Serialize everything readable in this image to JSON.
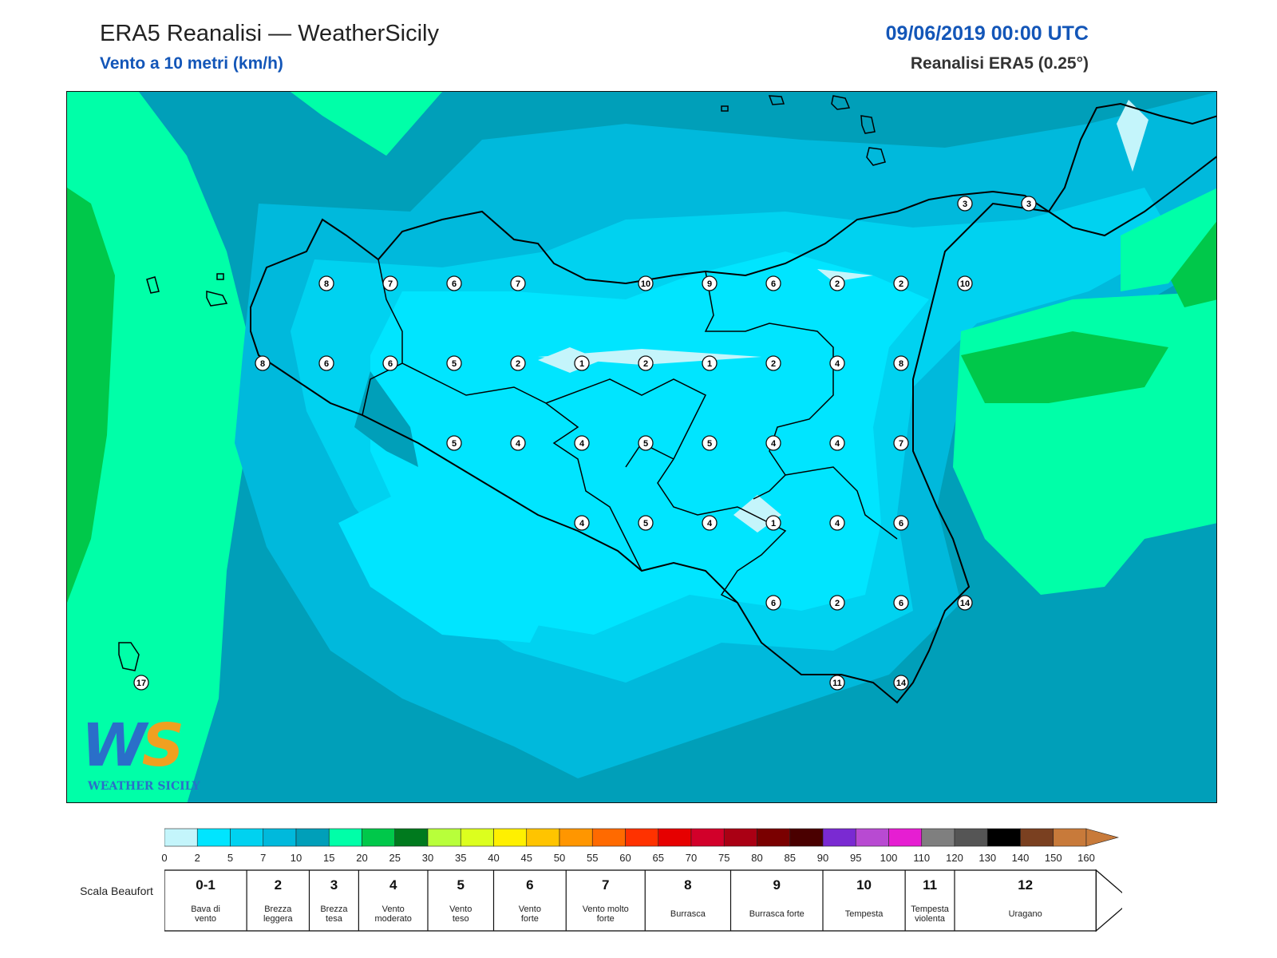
{
  "header": {
    "title": "ERA5 Reanalisi — WeatherSicily",
    "subtitle": "Vento a 10 metri (km/h)",
    "datetime": "09/06/2019 00:00 UTC",
    "source": "Reanalisi ERA5 (0.25°)"
  },
  "logo": {
    "mark": "WS",
    "text": "WEATHER SICILY"
  },
  "station_values": [
    {
      "v": "3",
      "col": 14,
      "row": 0
    },
    {
      "v": "3",
      "col": 15,
      "row": 0
    },
    {
      "v": "8",
      "col": 4,
      "row": 1
    },
    {
      "v": "7",
      "col": 5,
      "row": 1
    },
    {
      "v": "6",
      "col": 6,
      "row": 1
    },
    {
      "v": "7",
      "col": 7,
      "row": 1
    },
    {
      "v": "10",
      "col": 9,
      "row": 1
    },
    {
      "v": "9",
      "col": 10,
      "row": 1
    },
    {
      "v": "6",
      "col": 11,
      "row": 1
    },
    {
      "v": "2",
      "col": 12,
      "row": 1
    },
    {
      "v": "2",
      "col": 13,
      "row": 1
    },
    {
      "v": "10",
      "col": 14,
      "row": 1
    },
    {
      "v": "8",
      "col": 3,
      "row": 2
    },
    {
      "v": "6",
      "col": 4,
      "row": 2
    },
    {
      "v": "6",
      "col": 5,
      "row": 2
    },
    {
      "v": "5",
      "col": 6,
      "row": 2
    },
    {
      "v": "2",
      "col": 7,
      "row": 2
    },
    {
      "v": "1",
      "col": 8,
      "row": 2
    },
    {
      "v": "2",
      "col": 9,
      "row": 2
    },
    {
      "v": "1",
      "col": 10,
      "row": 2
    },
    {
      "v": "2",
      "col": 11,
      "row": 2
    },
    {
      "v": "4",
      "col": 12,
      "row": 2
    },
    {
      "v": "8",
      "col": 13,
      "row": 2
    },
    {
      "v": "5",
      "col": 6,
      "row": 3
    },
    {
      "v": "4",
      "col": 7,
      "row": 3
    },
    {
      "v": "4",
      "col": 8,
      "row": 3
    },
    {
      "v": "5",
      "col": 9,
      "row": 3
    },
    {
      "v": "5",
      "col": 10,
      "row": 3
    },
    {
      "v": "4",
      "col": 11,
      "row": 3
    },
    {
      "v": "4",
      "col": 12,
      "row": 3
    },
    {
      "v": "7",
      "col": 13,
      "row": 3
    },
    {
      "v": "4",
      "col": 8,
      "row": 4
    },
    {
      "v": "5",
      "col": 9,
      "row": 4
    },
    {
      "v": "4",
      "col": 10,
      "row": 4
    },
    {
      "v": "1",
      "col": 11,
      "row": 4
    },
    {
      "v": "4",
      "col": 12,
      "row": 4
    },
    {
      "v": "6",
      "col": 13,
      "row": 4
    },
    {
      "v": "6",
      "col": 11,
      "row": 5
    },
    {
      "v": "2",
      "col": 12,
      "row": 5
    },
    {
      "v": "6",
      "col": 13,
      "row": 5
    },
    {
      "v": "14",
      "col": 14,
      "row": 5
    },
    {
      "v": "11",
      "col": 12,
      "row": 6
    },
    {
      "v": "14",
      "col": 13,
      "row": 6
    },
    {
      "v": "17",
      "col": 1,
      "row": 6
    }
  ],
  "colorbar": {
    "colors": [
      "#c4f5fb",
      "#00e5ff",
      "#00d2f0",
      "#00b9dc",
      "#009fb9",
      "#00ffa8",
      "#00c84a",
      "#007a1e",
      "#b8ff3a",
      "#dcff1e",
      "#fff000",
      "#ffc400",
      "#ff9600",
      "#ff6a00",
      "#ff3200",
      "#e60000",
      "#d2002a",
      "#aa0014",
      "#7a0000",
      "#4a0000",
      "#7a2ad2",
      "#b84ad2",
      "#e61ed2",
      "#7f7f7f",
      "#555555",
      "#000000",
      "#7a4020",
      "#c87a3a"
    ],
    "ticks": [
      "0",
      "2",
      "5",
      "7",
      "10",
      "15",
      "20",
      "25",
      "30",
      "35",
      "40",
      "45",
      "50",
      "55",
      "60",
      "65",
      "70",
      "75",
      "80",
      "85",
      "90",
      "95",
      "100",
      "110",
      "120",
      "130",
      "140",
      "150",
      "160"
    ]
  },
  "beaufort": {
    "label": "Scala Beaufort",
    "classes": [
      {
        "n": "0-1",
        "d": "Bava di vento"
      },
      {
        "n": "2",
        "d": "Brezza leggera"
      },
      {
        "n": "3",
        "d": "Brezza tesa"
      },
      {
        "n": "4",
        "d": "Vento moderato"
      },
      {
        "n": "5",
        "d": "Vento teso"
      },
      {
        "n": "6",
        "d": "Vento forte"
      },
      {
        "n": "7",
        "d": "Vento molto forte"
      },
      {
        "n": "8",
        "d": "Burrasca"
      },
      {
        "n": "9",
        "d": "Burrasca forte"
      },
      {
        "n": "10",
        "d": "Tempesta"
      },
      {
        "n": "11",
        "d": "Tempesta violenta"
      },
      {
        "n": "12",
        "d": "Uragano"
      }
    ]
  }
}
